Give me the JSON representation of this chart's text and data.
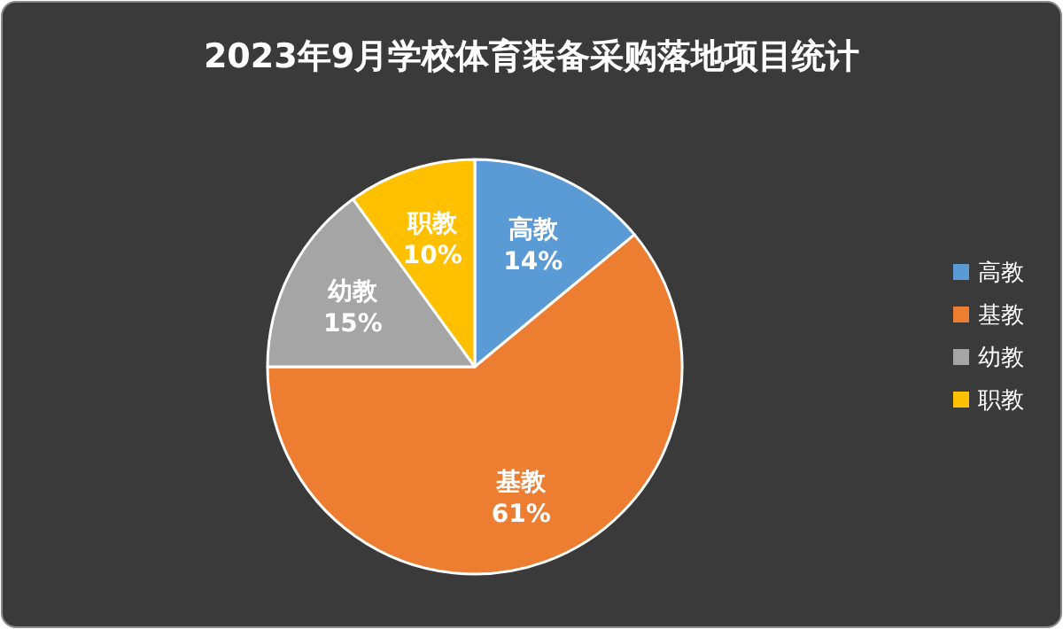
{
  "chart_data": {
    "type": "pie",
    "title": "2023年9月学校体育装备采购落地项目统计",
    "categories": [
      "高教",
      "基教",
      "幼教",
      "职教"
    ],
    "values": [
      14,
      61,
      15,
      10
    ],
    "value_labels": [
      "14%",
      "61%",
      "15%",
      "10%"
    ],
    "colors": [
      "#5b9bd5",
      "#ed7d31",
      "#a5a5a5",
      "#ffc000"
    ],
    "legend": "right"
  }
}
